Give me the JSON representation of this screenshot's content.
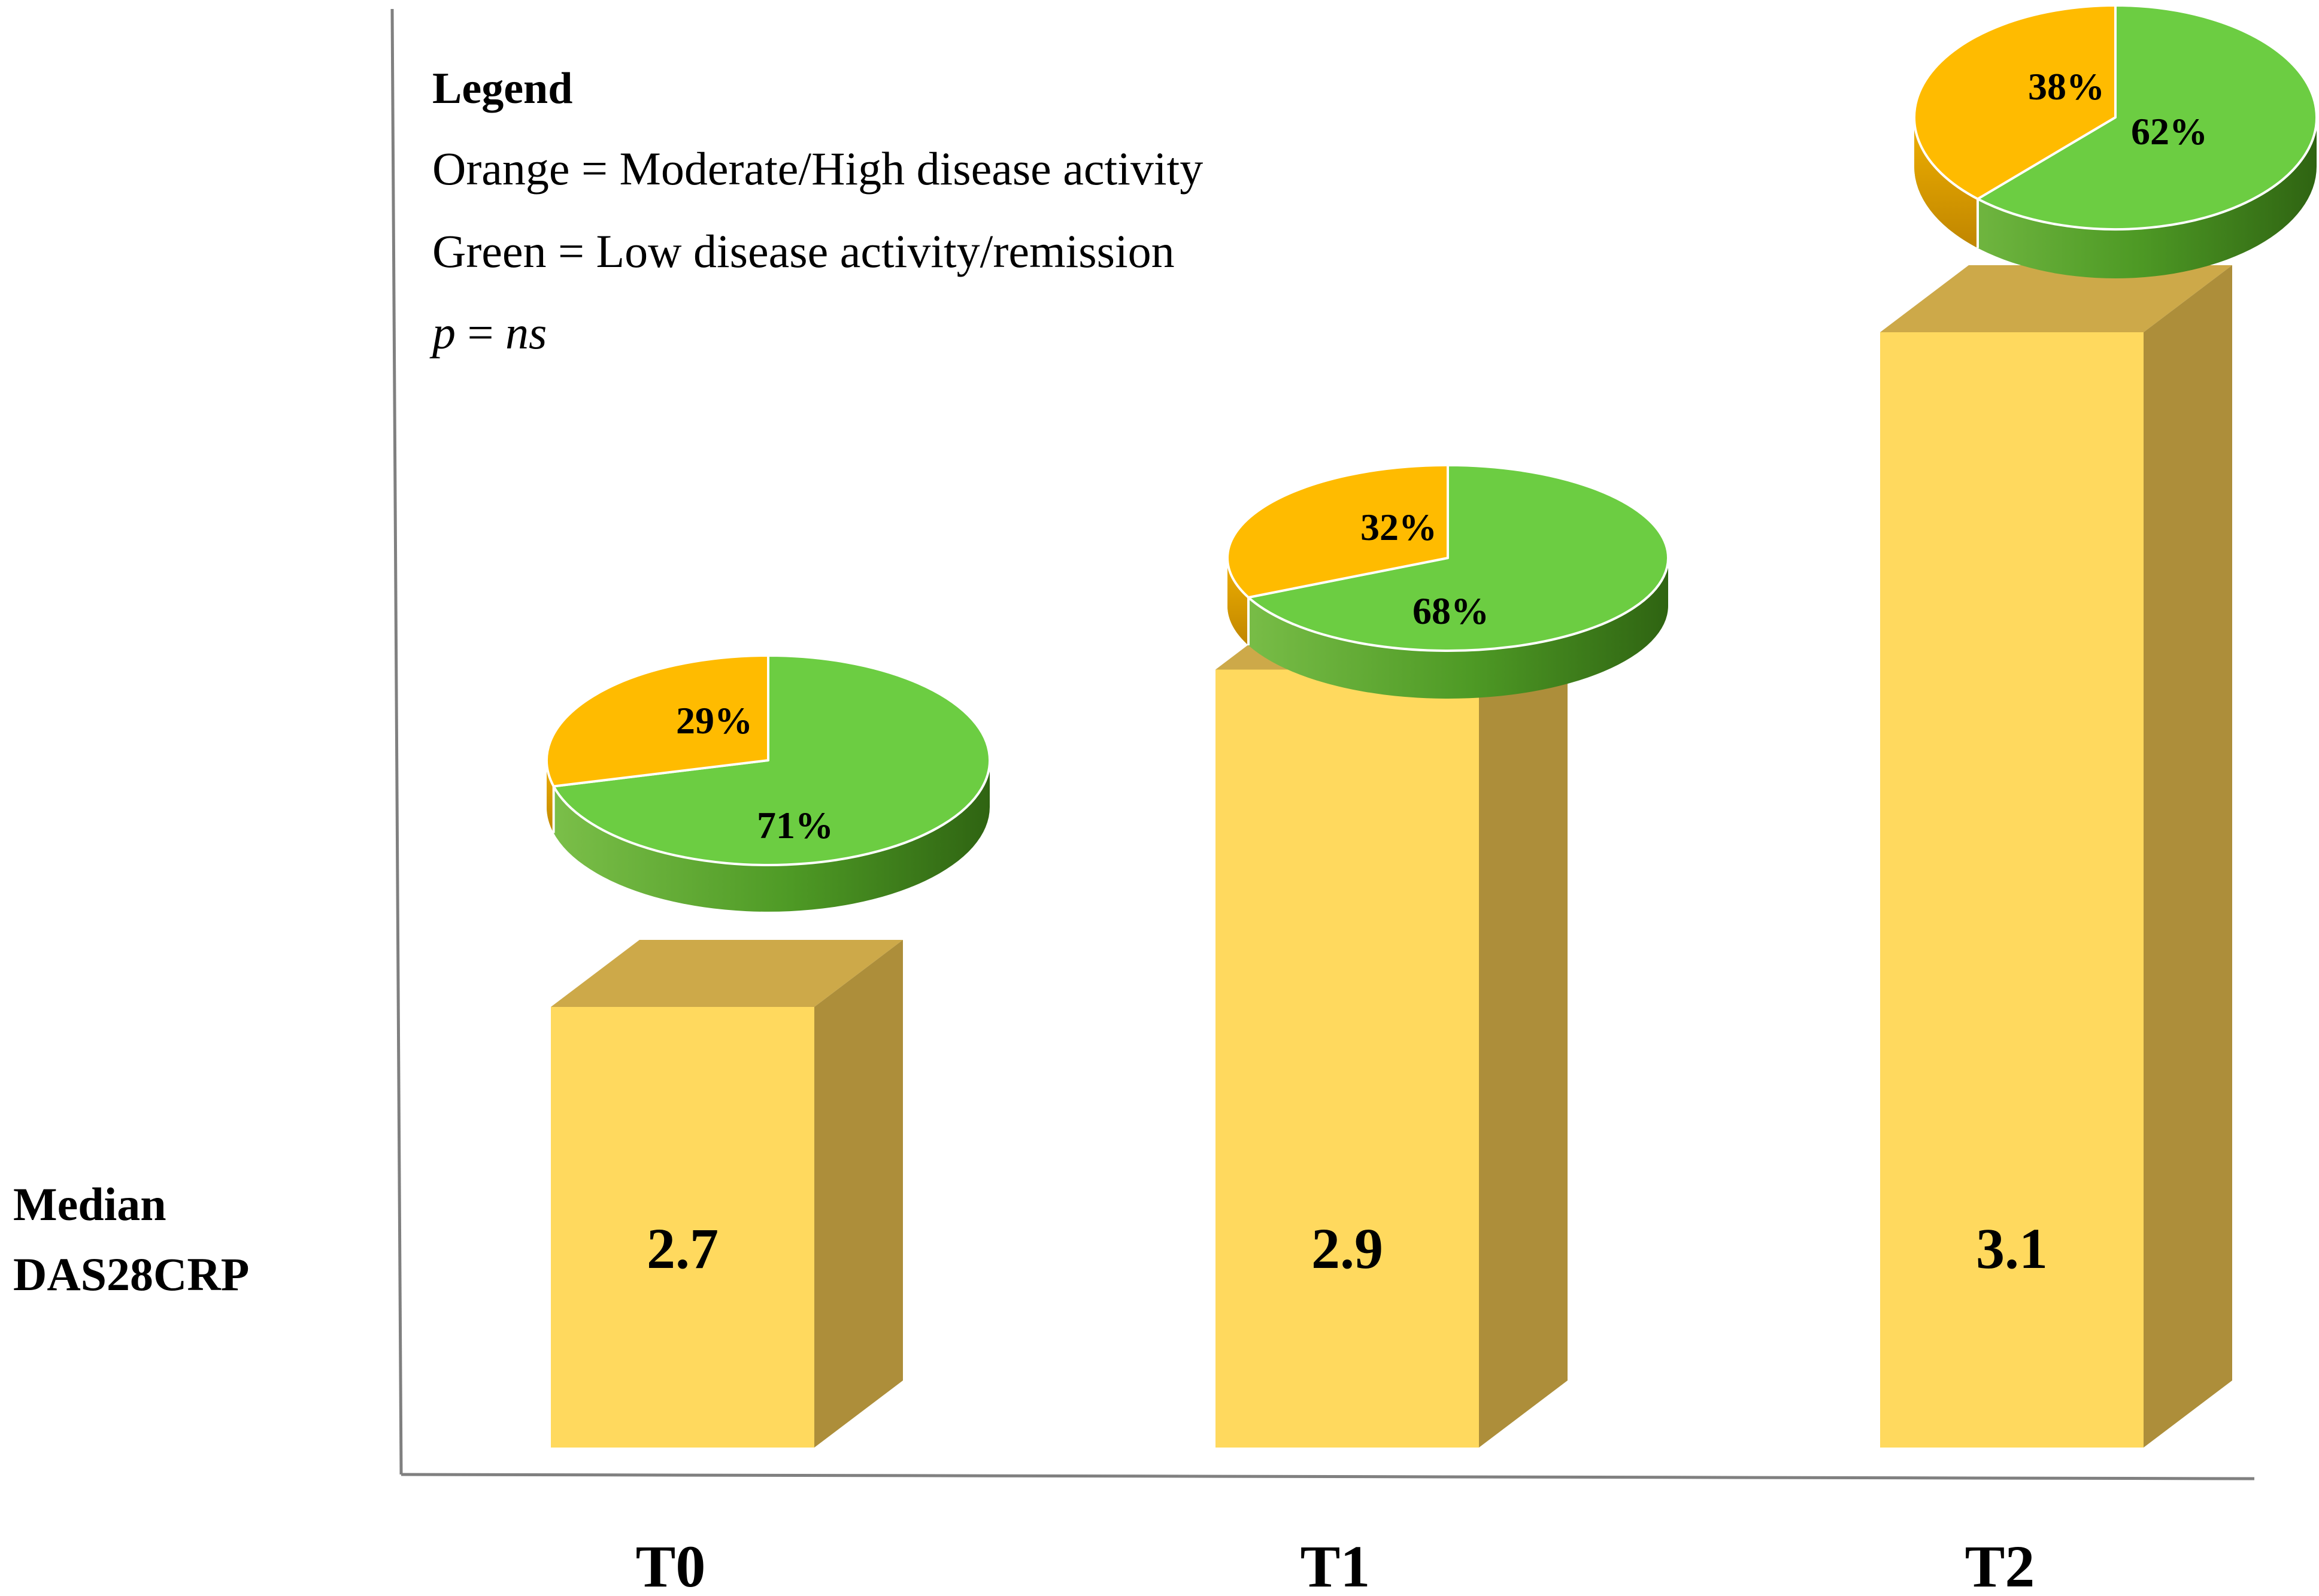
{
  "chart_data": {
    "type": "bar",
    "categories": [
      "T0",
      "T1",
      "T2"
    ],
    "values": [
      2.7,
      2.9,
      3.1
    ],
    "value_labels": [
      "2.7",
      "2.9",
      "3.1"
    ],
    "ylabel": [
      "Median",
      "DAS28CRP"
    ],
    "pies": [
      {
        "category": "T0",
        "orange": 29,
        "green": 71,
        "orange_label": "29%",
        "green_label": "71%"
      },
      {
        "category": "T1",
        "orange": 32,
        "green": 68,
        "orange_label": "32%",
        "green_label": "68%"
      },
      {
        "category": "T2",
        "orange": 38,
        "green": 62,
        "orange_label": "38%",
        "green_label": "62%"
      }
    ],
    "legend": {
      "title": "Legend",
      "orange_text": "Orange = Moderate/High disease activity",
      "green_text": "Green = Low disease activity/remission",
      "p_symbol": "p",
      "p_value": "ns"
    },
    "colors": {
      "bar_front": "#FFD95E",
      "bar_top": "#CDA949",
      "bar_side": "#AD8E3A",
      "pie_orange": "#FFBB00",
      "pie_orange_dark": "#D69A00",
      "pie_green": "#6CCD42",
      "pie_green_dark": "#3C7A18",
      "axis": "#808080",
      "text": "#000000"
    }
  }
}
